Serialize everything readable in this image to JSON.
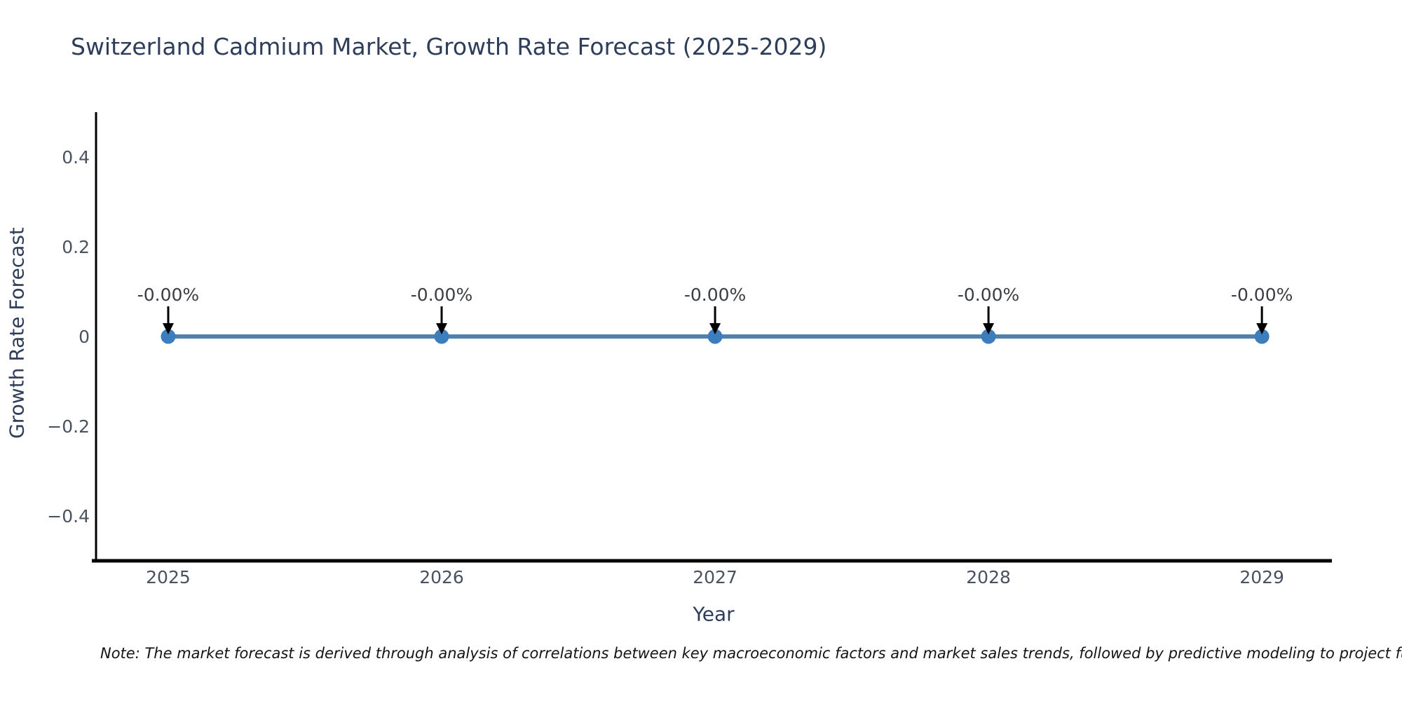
{
  "title": "Switzerland Cadmium Market, Growth Rate Forecast (2025-2029)",
  "footnote": {
    "text": "Note: The market forecast is derived through analysis of correlations between key macroeconomic factors and market sales trends, followed by predictive modeling to project future sales"
  },
  "chart_data": {
    "type": "line",
    "title": "Switzerland Cadmium Market, Growth Rate Forecast (2025-2029)",
    "xlabel": "Year",
    "ylabel": "Growth Rate Forecast",
    "x": [
      2025,
      2026,
      2027,
      2028,
      2029
    ],
    "values": [
      0,
      0,
      0,
      0,
      0
    ],
    "point_labels": [
      "-0.00%",
      "-0.00%",
      "-0.00%",
      "-0.00%",
      "-0.00%"
    ],
    "x_ticks": [
      {
        "value": 2025,
        "label": "2025"
      },
      {
        "value": 2026,
        "label": "2026"
      },
      {
        "value": 2027,
        "label": "2027"
      },
      {
        "value": 2028,
        "label": "2028"
      },
      {
        "value": 2029,
        "label": "2029"
      }
    ],
    "y_ticks": [
      {
        "value": 0.4,
        "label": "0.4"
      },
      {
        "value": 0.2,
        "label": "0.2"
      },
      {
        "value": 0,
        "label": "0"
      },
      {
        "value": -0.2,
        "label": "−0.2"
      },
      {
        "value": -0.4,
        "label": "−0.4"
      }
    ],
    "xlim": [
      2024.736,
      2029.256
    ],
    "ylim": [
      -0.5,
      0.5
    ],
    "grid": false,
    "legend": "none",
    "marker_shape": "circle",
    "annotation_arrow": "down-arrow",
    "colors": {
      "line": "#4e81ad",
      "marker": "#3b7dbd",
      "arrow": "#000000",
      "axis": "#000000",
      "tick_label": "#49525e",
      "annotation_text": "#3a3d42",
      "title": "#2e3d59",
      "note": "#141414",
      "background": "#ffffff"
    }
  }
}
